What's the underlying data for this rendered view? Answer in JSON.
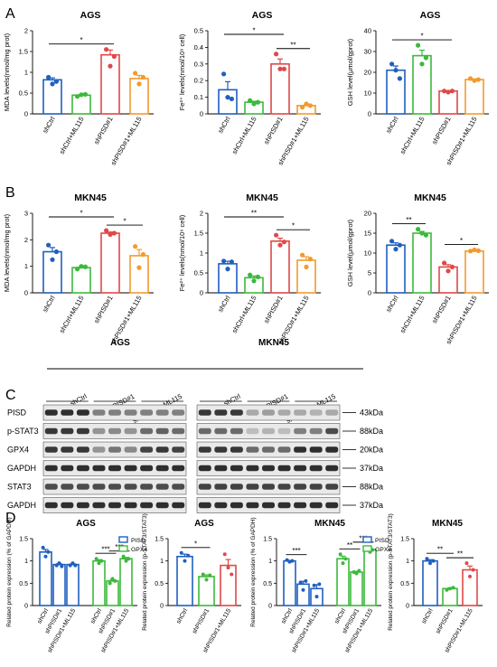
{
  "panels": {
    "A": "A",
    "B": "B",
    "C": "C",
    "D": "D"
  },
  "colors": {
    "blue": "#1f5fbf",
    "green": "#3cb93c",
    "red": "#e04848",
    "orange": "#f39a2c"
  },
  "chart_data": [
    {
      "id": "A1",
      "type": "bar",
      "title": "AGS",
      "ylabel": "MDA levels(nmol/mg prot)",
      "ylim": [
        0,
        2.0
      ],
      "yticks": [
        0.0,
        0.5,
        1.0,
        1.5,
        2.0
      ],
      "categories": [
        "shCtrl",
        "shCtrl+ML115",
        "shPISD#1",
        "shPISD#1+ML115"
      ],
      "values": [
        0.82,
        0.45,
        1.42,
        0.85
      ],
      "points": [
        [
          0.88,
          0.72,
          0.78
        ],
        [
          0.42,
          0.46,
          0.47
        ],
        [
          1.55,
          1.15,
          1.38
        ],
        [
          0.98,
          0.72,
          0.88
        ]
      ],
      "colors": [
        "#1f5fbf",
        "#3cb93c",
        "#e04848",
        "#f39a2c"
      ],
      "sig": [
        {
          "from": 0,
          "to": 2,
          "text": "*"
        }
      ]
    },
    {
      "id": "A2",
      "type": "bar",
      "title": "AGS",
      "ylabel": "Fe²⁺ levels(nmol/10⁶ cell)",
      "ylim": [
        0,
        0.5
      ],
      "yticks": [
        0.0,
        0.1,
        0.2,
        0.3,
        0.4,
        0.5
      ],
      "categories": [
        "shCtrl",
        "shCtrl+ML115",
        "shPISD#1",
        "shPISD#1+ML115"
      ],
      "values": [
        0.145,
        0.07,
        0.3,
        0.05
      ],
      "points": [
        [
          0.24,
          0.1,
          0.09
        ],
        [
          0.08,
          0.06,
          0.07
        ],
        [
          0.36,
          0.27,
          0.27
        ],
        [
          0.04,
          0.06,
          0.05
        ]
      ],
      "colors": [
        "#1f5fbf",
        "#3cb93c",
        "#e04848",
        "#f39a2c"
      ],
      "sig": [
        {
          "from": 0,
          "to": 2,
          "text": "*"
        },
        {
          "from": 2,
          "to": 3,
          "text": "**"
        }
      ]
    },
    {
      "id": "A3",
      "type": "bar",
      "title": "AGS",
      "ylabel": "GSH level(μmol/gprot)",
      "ylim": [
        0,
        40
      ],
      "yticks": [
        0,
        10,
        20,
        30,
        40
      ],
      "categories": [
        "shCtrl",
        "shCtrl+ML115",
        "shPISD#1",
        "shPISD#1+ML115"
      ],
      "values": [
        21,
        28,
        11,
        16.5
      ],
      "points": [
        [
          24,
          21,
          17
        ],
        [
          33,
          24,
          27
        ],
        [
          11,
          10.5,
          11
        ],
        [
          17,
          16,
          16.5
        ]
      ],
      "colors": [
        "#1f5fbf",
        "#3cb93c",
        "#e04848",
        "#f39a2c"
      ],
      "sig": [
        {
          "from": 0,
          "to": 2,
          "text": "*"
        }
      ]
    },
    {
      "id": "B1",
      "type": "bar",
      "title": "MKN45",
      "ylabel": "MDA levels(nmol/mg prot)",
      "ylim": [
        0,
        3
      ],
      "yticks": [
        0,
        1,
        2,
        3
      ],
      "categories": [
        "shCtrl",
        "shCtrl+ML115",
        "shPISD#1",
        "shPISD#1+ML115"
      ],
      "values": [
        1.55,
        0.95,
        2.25,
        1.4
      ],
      "points": [
        [
          1.8,
          1.25,
          1.55
        ],
        [
          0.9,
          1.0,
          0.98
        ],
        [
          2.35,
          2.2,
          2.25
        ],
        [
          1.75,
          0.95,
          1.45
        ]
      ],
      "colors": [
        "#1f5fbf",
        "#3cb93c",
        "#e04848",
        "#f39a2c"
      ],
      "sig": [
        {
          "from": 0,
          "to": 2,
          "text": "*"
        },
        {
          "from": 2,
          "to": 3,
          "text": "*"
        }
      ]
    },
    {
      "id": "B2",
      "type": "bar",
      "title": "MKN45",
      "ylabel": "Fe²⁺ levels(nmol/10⁶ cell)",
      "ylim": [
        0,
        2.0
      ],
      "yticks": [
        0.0,
        0.5,
        1.0,
        1.5,
        2.0
      ],
      "categories": [
        "shCtrl",
        "shCtrl+ML115",
        "shPISD#1",
        "shPISD#1+ML115"
      ],
      "values": [
        0.73,
        0.38,
        1.3,
        0.82
      ],
      "points": [
        [
          0.8,
          0.6,
          0.78
        ],
        [
          0.45,
          0.3,
          0.4
        ],
        [
          1.45,
          1.2,
          1.28
        ],
        [
          0.95,
          0.65,
          0.85
        ]
      ],
      "colors": [
        "#1f5fbf",
        "#3cb93c",
        "#e04848",
        "#f39a2c"
      ],
      "sig": [
        {
          "from": 0,
          "to": 2,
          "text": "**"
        },
        {
          "from": 2,
          "to": 3,
          "text": "*"
        }
      ]
    },
    {
      "id": "B3",
      "type": "bar",
      "title": "MKN45",
      "ylabel": "GSH level(μmol/gprot)",
      "ylim": [
        0,
        20
      ],
      "yticks": [
        0,
        5,
        10,
        15,
        20
      ],
      "categories": [
        "shCtrl",
        "shCtrl+ML115",
        "shPISD#1",
        "shPISD#1+ML115"
      ],
      "values": [
        12,
        15,
        6.5,
        10.5
      ],
      "points": [
        [
          13,
          11,
          12
        ],
        [
          16,
          15,
          14.5
        ],
        [
          7.5,
          5.5,
          6.5
        ],
        [
          10.5,
          10.8,
          10.6
        ]
      ],
      "colors": [
        "#1f5fbf",
        "#3cb93c",
        "#e04848",
        "#f39a2c"
      ],
      "sig": [
        {
          "from": 0,
          "to": 1,
          "text": "**"
        },
        {
          "from": 2,
          "to": 3,
          "text": "*"
        }
      ]
    },
    {
      "id": "D1",
      "type": "bar",
      "title": "AGS",
      "ylabel": "Related protein expression (% of GAPDH)",
      "ylim": [
        0,
        1.5
      ],
      "yticks": [
        0.0,
        0.5,
        1.0,
        1.5
      ],
      "legend": [
        "PISD",
        "GPX4"
      ],
      "legend_position": "top-right",
      "groups": [
        {
          "name": "PISD",
          "categories": [
            "shCtrl",
            "shPISD#1",
            "shPISD#1+ML115"
          ],
          "values": [
            1.2,
            0.92,
            0.92
          ],
          "points": [
            [
              1.3,
              1.1,
              1.2
            ],
            [
              0.9,
              0.95,
              0.88
            ],
            [
              0.9,
              0.95,
              0.9
            ]
          ],
          "color": "#1f5fbf"
        },
        {
          "name": "GPX4",
          "categories": [
            "shCtrl",
            "shPISD#1",
            "shPISD#1+ML115"
          ],
          "values": [
            1.0,
            0.55,
            1.05
          ],
          "points": [
            [
              1.05,
              0.95,
              1.0
            ],
            [
              0.5,
              0.6,
              0.55
            ],
            [
              1.1,
              1.0,
              1.05
            ]
          ],
          "color": "#3cb93c"
        }
      ],
      "sig": [
        {
          "group": 1,
          "from": 0,
          "to": 1,
          "text": "***"
        },
        {
          "group": 1,
          "from": 1,
          "to": 2,
          "text": "***"
        }
      ]
    },
    {
      "id": "D2",
      "type": "bar",
      "title": "AGS",
      "ylabel": "Related protein expression (p-STAT3/STAT3)",
      "ylim": [
        0,
        1.5
      ],
      "yticks": [
        0.0,
        0.5,
        1.0,
        1.5
      ],
      "categories": [
        "shCtrl",
        "shPISD#1",
        "shPISD#1+ML115"
      ],
      "values": [
        1.1,
        0.65,
        0.9
      ],
      "points": [
        [
          1.18,
          1.0,
          1.12
        ],
        [
          0.7,
          0.58,
          0.68
        ],
        [
          1.15,
          0.85,
          0.7
        ]
      ],
      "colors": [
        "#1f5fbf",
        "#3cb93c",
        "#e04848"
      ],
      "sig": [
        {
          "from": 0,
          "to": 1,
          "text": "*"
        }
      ]
    },
    {
      "id": "D3",
      "type": "bar",
      "title": "MKN45",
      "ylabel": "Related protein expression (% of GAPDH)",
      "ylim": [
        0,
        1.5
      ],
      "yticks": [
        0.0,
        0.5,
        1.0,
        1.5
      ],
      "legend": [
        "PISD",
        "GPX4"
      ],
      "legend_position": "top-right",
      "groups": [
        {
          "name": "PISD",
          "categories": [
            "shCtrl",
            "shPISD#1",
            "shPISD#1+ML115"
          ],
          "values": [
            1.0,
            0.48,
            0.38
          ],
          "points": [
            [
              1.02,
              0.98,
              1.0
            ],
            [
              0.52,
              0.35,
              0.55
            ],
            [
              0.45,
              0.2,
              0.48
            ]
          ],
          "color": "#1f5fbf"
        },
        {
          "name": "GPX4",
          "categories": [
            "shCtrl",
            "shPISD#1",
            "shPISD#1+ML115"
          ],
          "values": [
            1.05,
            0.75,
            1.25
          ],
          "points": [
            [
              1.15,
              0.95,
              1.05
            ],
            [
              0.75,
              0.72,
              0.78
            ],
            [
              1.3,
              1.2,
              1.25
            ]
          ],
          "color": "#3cb93c"
        }
      ],
      "sig": [
        {
          "group": 0,
          "from": 0,
          "to": 1,
          "text": "***"
        },
        {
          "group": 1,
          "from": 0,
          "to": 1,
          "text": "**"
        },
        {
          "group": 1,
          "from": 1,
          "to": 2,
          "text": "***"
        }
      ]
    },
    {
      "id": "D4",
      "type": "bar",
      "title": "MKN45",
      "ylabel": "Related protein expression (p-STAT3/STAT3)",
      "ylim": [
        0,
        1.5
      ],
      "yticks": [
        0.0,
        0.5,
        1.0,
        1.5
      ],
      "categories": [
        "shCtrl",
        "shPISD#1",
        "shPISD#1+ML115"
      ],
      "values": [
        1.0,
        0.38,
        0.8
      ],
      "points": [
        [
          1.05,
          0.95,
          1.0
        ],
        [
          0.35,
          0.38,
          0.4
        ],
        [
          0.95,
          0.65,
          0.8
        ]
      ],
      "colors": [
        "#1f5fbf",
        "#3cb93c",
        "#e04848"
      ],
      "sig": [
        {
          "from": 0,
          "to": 1,
          "text": "**"
        },
        {
          "from": 1,
          "to": 2,
          "text": "**"
        }
      ]
    }
  ],
  "blot": {
    "cell_lines": [
      "AGS",
      "MKN45"
    ],
    "groups": [
      "shCtrl",
      "shPISD#1",
      "shPISD#1+ML115"
    ],
    "proteins": [
      "PISD",
      "p-STAT3",
      "GPX4",
      "GAPDH",
      "STAT3",
      "GAPDH"
    ],
    "weights": [
      "43kDa",
      "88kDa",
      "20kDa",
      "37kDa",
      "88kDa",
      "37kDa"
    ],
    "intensity": [
      [
        [
          0.9,
          0.9,
          0.9,
          0.5,
          0.5,
          0.5,
          0.5,
          0.5,
          0.5
        ],
        [
          0.85,
          0.85,
          0.85,
          0.3,
          0.35,
          0.3,
          0.3,
          0.25,
          0.3
        ]
      ],
      [
        [
          0.85,
          0.85,
          0.85,
          0.4,
          0.45,
          0.4,
          0.6,
          0.65,
          0.6
        ],
        [
          0.6,
          0.6,
          0.6,
          0.2,
          0.25,
          0.2,
          0.5,
          0.5,
          0.75
        ]
      ],
      [
        [
          0.85,
          0.85,
          0.85,
          0.4,
          0.55,
          0.45,
          0.8,
          0.85,
          0.8
        ],
        [
          0.85,
          0.85,
          0.85,
          0.6,
          0.6,
          0.6,
          0.9,
          0.9,
          0.9
        ]
      ],
      [
        [
          0.9,
          0.9,
          0.9,
          0.9,
          0.9,
          0.9,
          0.9,
          0.9,
          0.9
        ],
        [
          0.9,
          0.9,
          0.9,
          0.9,
          0.9,
          0.9,
          0.9,
          0.9,
          0.9
        ]
      ],
      [
        [
          0.75,
          0.75,
          0.75,
          0.75,
          0.75,
          0.75,
          0.75,
          0.75,
          0.75
        ],
        [
          0.8,
          0.8,
          0.8,
          0.8,
          0.8,
          0.8,
          0.8,
          0.8,
          0.8
        ]
      ],
      [
        [
          0.9,
          0.9,
          0.9,
          0.9,
          0.9,
          0.9,
          0.9,
          0.9,
          0.9
        ],
        [
          0.9,
          0.9,
          0.9,
          0.9,
          0.9,
          0.9,
          0.9,
          0.9,
          0.9
        ]
      ]
    ]
  }
}
